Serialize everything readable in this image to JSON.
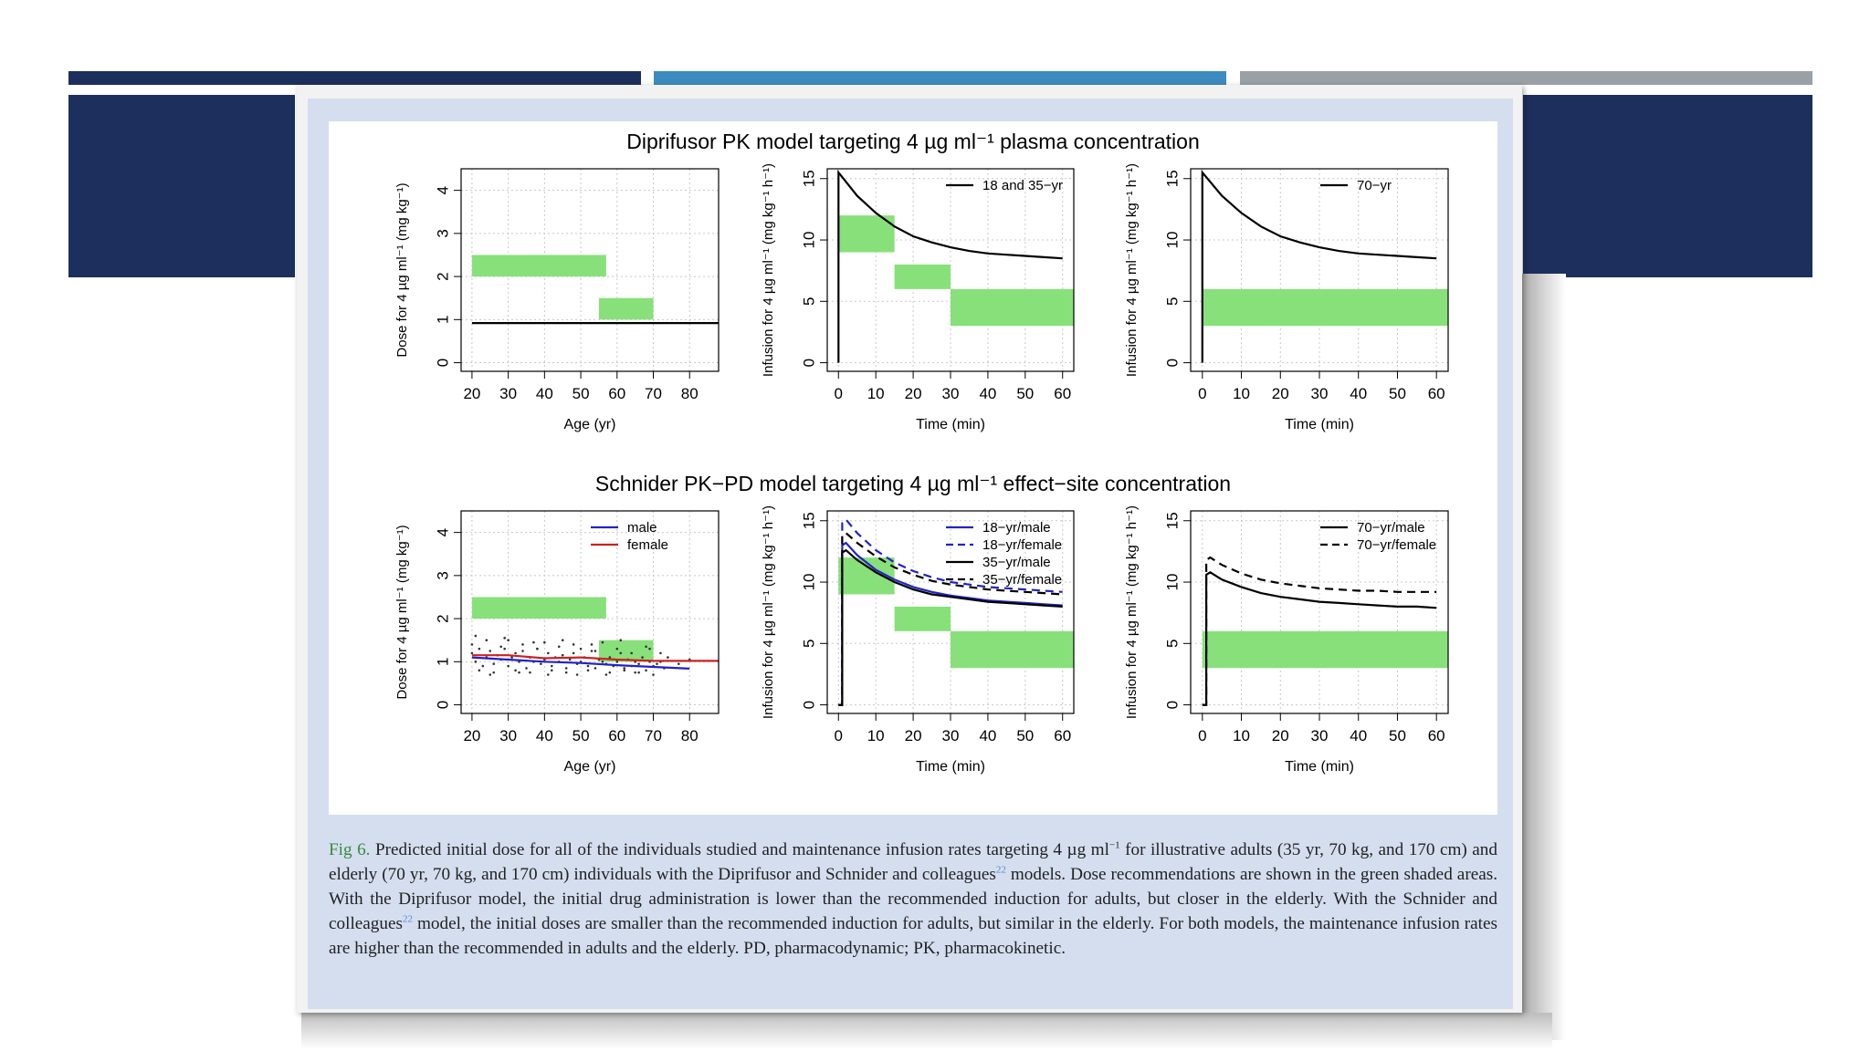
{
  "slide": {
    "accent_colors": [
      "#1d2f5c",
      "#3d8bbf",
      "#9aa0a6"
    ]
  },
  "figure": {
    "row_titles": [
      "Diprifusor PK model targeting 4 µg ml⁻¹ plasma concentration",
      "Schnider PK−PD model targeting 4 µg ml⁻¹ effect−site concentration"
    ]
  },
  "caption": {
    "label": "Fig 6.",
    "parts": [
      " Predicted initial dose for all of the individuals studied and maintenance infusion rates targeting 4 µg ml",
      " for illustrative adults (35 yr, 70 kg, and 170 cm) and elderly (70 yr, 70 kg, and 170 cm) individuals with the Diprifusor and Schnider and colleagues",
      " models. Dose recommendations are shown in the green shaded areas. With the Diprifusor model, the initial drug administration is lower than the recommended induction for adults, but closer in the elderly. With the Schnider and colleagues",
      " model, the initial doses are smaller than the recommended induction for adults, but similar in the elderly. For both models, the maintenance infusion rates are higher than the recommended in adults and the elderly. PD, pharmacodynamic; PK, pharmacokinetic."
    ],
    "sup_exponent": "−1",
    "ref": "22"
  },
  "chart_data": [
    {
      "type": "line",
      "title": "",
      "xlabel": "Age (yr)",
      "ylabel": "Dose for 4 µg ml⁻¹ (mg kg⁻¹)",
      "xlim": [
        17,
        88
      ],
      "ylim": [
        -0.2,
        4.5
      ],
      "xticks": [
        20,
        30,
        40,
        50,
        60,
        70,
        80
      ],
      "yticks": [
        0,
        1,
        2,
        3,
        4
      ],
      "grid": true,
      "legend": null,
      "shaded": [
        {
          "x": [
            20,
            57
          ],
          "y": [
            2.0,
            2.5
          ]
        },
        {
          "x": [
            55,
            70
          ],
          "y": [
            1.0,
            1.5
          ]
        }
      ],
      "series": [
        {
          "color": "#000000",
          "dash": false,
          "x": [
            20,
            88
          ],
          "y": [
            0.92,
            0.92
          ]
        }
      ]
    },
    {
      "type": "line",
      "title": "",
      "xlabel": "Time (min)",
      "ylabel": "Infusion for 4 µg ml⁻¹ (mg kg⁻¹ h⁻¹)",
      "xlim": [
        -3,
        63
      ],
      "ylim": [
        -0.7,
        15.8
      ],
      "xticks": [
        0,
        10,
        20,
        30,
        40,
        50,
        60
      ],
      "yticks": [
        0,
        5,
        10,
        15
      ],
      "grid": true,
      "legend_position": "top-right",
      "shaded": [
        {
          "x": [
            0,
            15
          ],
          "y": [
            9,
            12
          ]
        },
        {
          "x": [
            15,
            30
          ],
          "y": [
            6,
            8
          ]
        },
        {
          "x": [
            30,
            63
          ],
          "y": [
            3,
            6
          ]
        }
      ],
      "series": [
        {
          "name": "18 and 35−yr",
          "color": "#000000",
          "dash": false,
          "x": [
            0,
            0,
            5,
            10,
            15,
            20,
            25,
            30,
            35,
            40,
            45,
            50,
            55,
            60
          ],
          "y": [
            0,
            15.5,
            13.6,
            12.2,
            11.1,
            10.3,
            9.8,
            9.4,
            9.1,
            8.9,
            8.8,
            8.7,
            8.6,
            8.5
          ]
        }
      ]
    },
    {
      "type": "line",
      "title": "",
      "xlabel": "Time (min)",
      "ylabel": "Infusion for 4 µg ml⁻¹ (mg kg⁻¹ h⁻¹)",
      "xlim": [
        -3,
        63
      ],
      "ylim": [
        -0.7,
        15.8
      ],
      "xticks": [
        0,
        10,
        20,
        30,
        40,
        50,
        60
      ],
      "yticks": [
        0,
        5,
        10,
        15
      ],
      "grid": true,
      "legend_position": "top-right",
      "shaded": [
        {
          "x": [
            0,
            63
          ],
          "y": [
            3,
            6
          ]
        }
      ],
      "series": [
        {
          "name": "70−yr",
          "color": "#000000",
          "dash": false,
          "x": [
            0,
            0,
            5,
            10,
            15,
            20,
            25,
            30,
            35,
            40,
            45,
            50,
            55,
            60
          ],
          "y": [
            0,
            15.5,
            13.6,
            12.2,
            11.1,
            10.3,
            9.8,
            9.4,
            9.1,
            8.9,
            8.8,
            8.7,
            8.6,
            8.5
          ]
        }
      ]
    },
    {
      "type": "scatter",
      "title": "",
      "xlabel": "Age (yr)",
      "ylabel": "Dose for 4 µg ml⁻¹ (mg kg⁻¹)",
      "xlim": [
        17,
        88
      ],
      "ylim": [
        -0.2,
        4.5
      ],
      "xticks": [
        20,
        30,
        40,
        50,
        60,
        70,
        80
      ],
      "yticks": [
        0,
        1,
        2,
        3,
        4
      ],
      "grid": true,
      "legend_position": "top-right",
      "shaded": [
        {
          "x": [
            20,
            57
          ],
          "y": [
            2.0,
            2.5
          ]
        },
        {
          "x": [
            55,
            70
          ],
          "y": [
            1.0,
            1.5
          ]
        }
      ],
      "series": [
        {
          "name": "male",
          "color": "#2222c8",
          "dash": false,
          "x": [
            20,
            30,
            40,
            50,
            60,
            70,
            80
          ],
          "y": [
            1.1,
            1.05,
            1.0,
            0.97,
            0.92,
            0.88,
            0.84
          ]
        },
        {
          "name": "female",
          "color": "#cc2222",
          "dash": false,
          "x": [
            20,
            30,
            40,
            50,
            60,
            70,
            80,
            88
          ],
          "y": [
            1.15,
            1.15,
            1.08,
            1.1,
            1.05,
            1.02,
            1.02,
            1.02
          ]
        }
      ],
      "points": {
        "color": "#333333",
        "x": [
          20,
          21,
          22,
          23,
          24,
          25,
          26,
          27,
          28,
          29,
          30,
          31,
          32,
          33,
          34,
          35,
          36,
          37,
          38,
          39,
          40,
          41,
          42,
          43,
          44,
          45,
          46,
          47,
          48,
          49,
          50,
          51,
          52,
          53,
          54,
          55,
          56,
          57,
          58,
          59,
          60,
          61,
          62,
          63,
          64,
          65,
          66,
          67,
          68,
          69,
          70,
          71,
          72,
          73,
          20,
          22,
          24,
          26,
          28,
          30,
          32,
          34,
          36,
          38,
          40,
          42,
          44,
          46,
          48,
          50,
          52,
          54,
          56,
          58,
          60,
          62,
          64,
          66,
          68,
          70,
          72,
          21,
          25,
          29,
          33,
          37,
          41,
          45,
          49,
          53,
          57,
          61,
          65,
          69,
          74,
          77,
          80
        ],
        "y": [
          1.2,
          1.0,
          1.3,
          0.9,
          1.1,
          1.25,
          0.95,
          1.15,
          1.05,
          1.3,
          0.9,
          1.1,
          1.2,
          1.0,
          1.25,
          0.85,
          1.1,
          1.0,
          1.3,
          0.95,
          1.05,
          1.2,
          0.9,
          1.1,
          1.0,
          1.15,
          0.85,
          1.05,
          1.2,
          0.95,
          1.0,
          1.1,
          0.9,
          1.25,
          0.85,
          1.05,
          1.0,
          0.95,
          1.1,
          0.9,
          1.0,
          1.2,
          0.85,
          1.05,
          0.9,
          1.0,
          0.95,
          1.1,
          0.8,
          1.0,
          0.9,
          0.95,
          1.0,
          0.85,
          1.4,
          0.8,
          1.5,
          0.75,
          1.35,
          1.5,
          0.8,
          1.4,
          0.75,
          1.3,
          1.45,
          0.8,
          1.35,
          0.75,
          1.4,
          1.3,
          0.8,
          1.25,
          1.45,
          0.75,
          1.3,
          0.8,
          1.2,
          0.75,
          1.35,
          0.7,
          1.2,
          1.6,
          0.7,
          1.55,
          0.75,
          1.45,
          0.7,
          1.5,
          0.7,
          1.4,
          0.7,
          1.5,
          0.75,
          1.3,
          1.1,
          0.95,
          1.05
        ]
      }
    },
    {
      "type": "line",
      "title": "",
      "xlabel": "Time (min)",
      "ylabel": "Infusion for 4 µg ml⁻¹ (mg kg⁻¹ h⁻¹)",
      "xlim": [
        -3,
        63
      ],
      "ylim": [
        -0.7,
        15.8
      ],
      "xticks": [
        0,
        10,
        20,
        30,
        40,
        50,
        60
      ],
      "yticks": [
        0,
        5,
        10,
        15
      ],
      "grid": true,
      "legend_position": "top-right",
      "shaded": [
        {
          "x": [
            0,
            15
          ],
          "y": [
            9,
            12
          ]
        },
        {
          "x": [
            15,
            30
          ],
          "y": [
            6,
            8
          ]
        },
        {
          "x": [
            30,
            63
          ],
          "y": [
            3,
            6
          ]
        }
      ],
      "series": [
        {
          "name": "18−yr/male",
          "color": "#2222c8",
          "dash": false,
          "x": [
            0,
            1,
            1,
            2,
            5,
            10,
            15,
            20,
            25,
            30,
            35,
            40,
            45,
            50,
            55,
            60
          ],
          "y": [
            0,
            0,
            13,
            13.2,
            12.2,
            11.0,
            10.2,
            9.6,
            9.2,
            8.9,
            8.7,
            8.5,
            8.4,
            8.3,
            8.2,
            8.1
          ]
        },
        {
          "name": "18−yr/female",
          "color": "#2222c8",
          "dash": true,
          "x": [
            0,
            1,
            1,
            2,
            5,
            10,
            15,
            20,
            25,
            30,
            35,
            40,
            45,
            50,
            55,
            60
          ],
          "y": [
            0,
            0,
            14.8,
            15.1,
            14.0,
            12.6,
            11.6,
            10.9,
            10.4,
            10.0,
            9.8,
            9.6,
            9.5,
            9.4,
            9.3,
            9.2
          ]
        },
        {
          "name": "35−yr/male",
          "color": "#000000",
          "dash": false,
          "x": [
            0,
            1,
            1,
            2,
            5,
            10,
            15,
            20,
            25,
            30,
            35,
            40,
            45,
            50,
            55,
            60
          ],
          "y": [
            0,
            0,
            12.4,
            12.6,
            11.8,
            10.8,
            10.0,
            9.4,
            9.0,
            8.8,
            8.6,
            8.4,
            8.3,
            8.2,
            8.1,
            8.0
          ]
        },
        {
          "name": "35−yr/female",
          "color": "#000000",
          "dash": true,
          "x": [
            0,
            1,
            1,
            2,
            5,
            10,
            15,
            20,
            25,
            30,
            35,
            40,
            45,
            50,
            55,
            60
          ],
          "y": [
            0,
            0,
            13.8,
            14.0,
            13.2,
            12.1,
            11.2,
            10.6,
            10.1,
            9.8,
            9.6,
            9.4,
            9.3,
            9.2,
            9.1,
            9.0
          ]
        }
      ]
    },
    {
      "type": "line",
      "title": "",
      "xlabel": "Time (min)",
      "ylabel": "Infusion for 4 µg ml⁻¹ (mg kg⁻¹ h⁻¹)",
      "xlim": [
        -3,
        63
      ],
      "ylim": [
        -0.7,
        15.8
      ],
      "xticks": [
        0,
        10,
        20,
        30,
        40,
        50,
        60
      ],
      "yticks": [
        0,
        5,
        10,
        15
      ],
      "grid": true,
      "legend_position": "top-right",
      "shaded": [
        {
          "x": [
            0,
            63
          ],
          "y": [
            3,
            6
          ]
        }
      ],
      "series": [
        {
          "name": "70−yr/male",
          "color": "#000000",
          "dash": false,
          "x": [
            0,
            1,
            1,
            2,
            5,
            10,
            15,
            20,
            25,
            30,
            35,
            40,
            45,
            50,
            55,
            60
          ],
          "y": [
            0,
            0,
            10.6,
            10.8,
            10.2,
            9.6,
            9.1,
            8.8,
            8.6,
            8.4,
            8.3,
            8.2,
            8.1,
            8.0,
            8.0,
            7.9
          ]
        },
        {
          "name": "70−yr/female",
          "color": "#000000",
          "dash": true,
          "x": [
            0,
            1,
            1,
            2,
            5,
            10,
            15,
            20,
            25,
            30,
            35,
            40,
            45,
            50,
            55,
            60
          ],
          "y": [
            0,
            0,
            11.8,
            12.0,
            11.4,
            10.7,
            10.2,
            9.9,
            9.7,
            9.5,
            9.4,
            9.3,
            9.3,
            9.2,
            9.2,
            9.2
          ]
        }
      ]
    }
  ]
}
